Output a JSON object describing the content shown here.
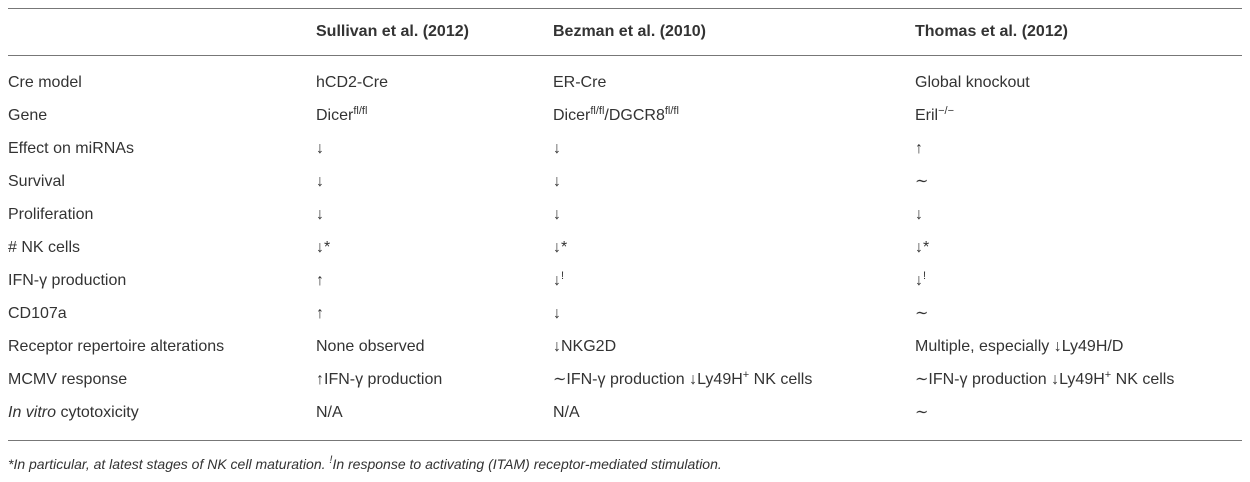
{
  "table": {
    "header": [
      "",
      "Sullivan et al. (2012)",
      "Bezman et al. (2010)",
      "Thomas et al. (2012)"
    ],
    "rows": [
      [
        [
          "Cre model"
        ],
        [
          "hCD2-Cre"
        ],
        [
          "ER-Cre"
        ],
        [
          "Global knockout"
        ]
      ],
      [
        [
          "Gene"
        ],
        [
          "Dicer",
          {
            "sup": "fl/fl"
          }
        ],
        [
          "Dicer",
          {
            "sup": "fl/fl"
          },
          "/DGCR8",
          {
            "sup": "fl/fl"
          }
        ],
        [
          "Eril",
          {
            "sup": "−/−"
          }
        ]
      ],
      [
        [
          "Effect on miRNAs"
        ],
        [
          "↓"
        ],
        [
          "↓"
        ],
        [
          "↑"
        ]
      ],
      [
        [
          "Survival"
        ],
        [
          "↓"
        ],
        [
          "↓"
        ],
        [
          "∼"
        ]
      ],
      [
        [
          "Proliferation"
        ],
        [
          "↓"
        ],
        [
          "↓"
        ],
        [
          "↓"
        ]
      ],
      [
        [
          "# NK cells"
        ],
        [
          "↓*"
        ],
        [
          "↓*"
        ],
        [
          "↓*"
        ]
      ],
      [
        [
          "IFN-γ production"
        ],
        [
          "↑"
        ],
        [
          "↓",
          {
            "sup": "!"
          }
        ],
        [
          "↓",
          {
            "sup": "!"
          }
        ]
      ],
      [
        [
          "CD107a"
        ],
        [
          "↑"
        ],
        [
          "↓"
        ],
        [
          "∼"
        ]
      ],
      [
        [
          "Receptor repertoire alterations"
        ],
        [
          "None observed"
        ],
        [
          "↓NKG2D"
        ],
        [
          "Multiple, especially ↓Ly49H/D"
        ]
      ],
      [
        [
          "MCMV response"
        ],
        [
          "↑IFN-γ production"
        ],
        [
          "∼IFN-γ production ↓Ly49H",
          {
            "sup": "+"
          },
          " NK cells"
        ],
        [
          "∼IFN-γ production ↓Ly49H",
          {
            "sup": "+"
          },
          " NK cells"
        ]
      ],
      [
        [
          {
            "i": "In vitro"
          },
          " cytotoxicity"
        ],
        [
          "N/A"
        ],
        [
          "N/A"
        ],
        [
          "∼"
        ]
      ]
    ],
    "footnote": [
      "*In particular, at latest stages of NK cell maturation. ",
      {
        "sup": "!"
      },
      "In response to activating (ITAM) receptor-mediated stimulation."
    ]
  }
}
